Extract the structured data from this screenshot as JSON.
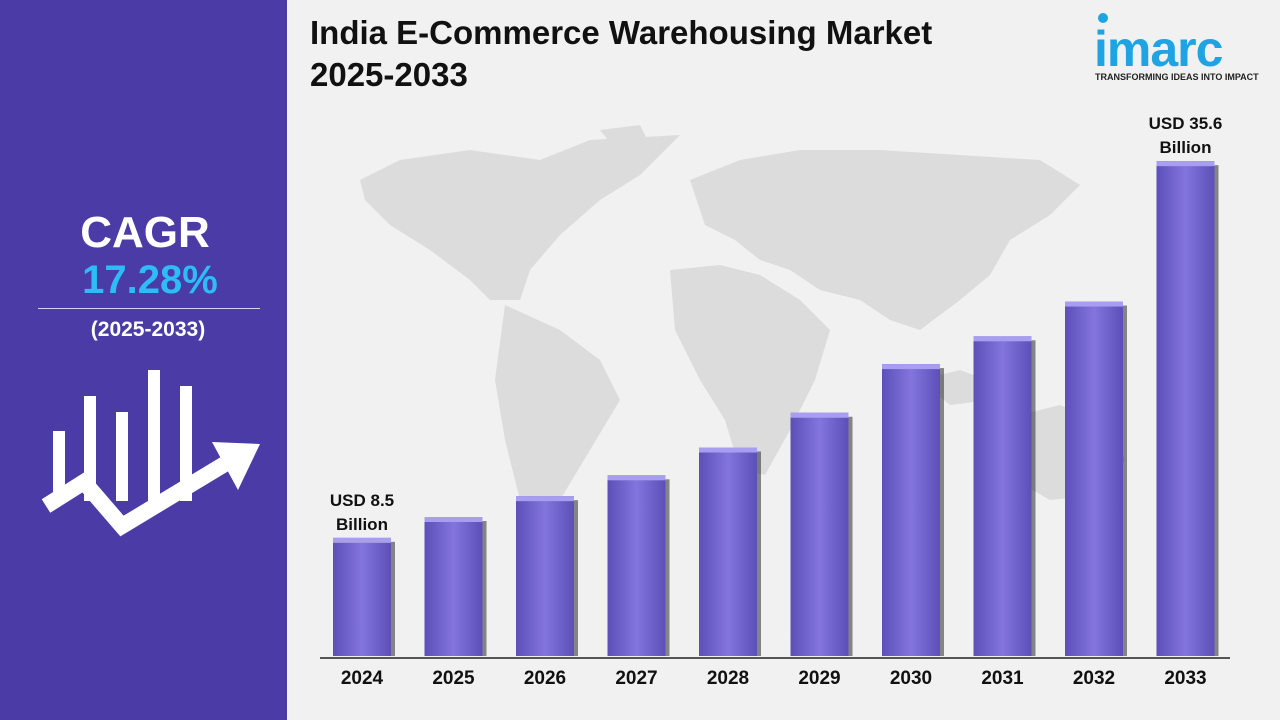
{
  "sidebar": {
    "cagr_label": "CAGR",
    "cagr_value": "17.28%",
    "cagr_period": "(2025-2033)"
  },
  "title": {
    "line1": "India E-Commerce Warehousing Market",
    "line2": "2025-2033"
  },
  "logo": {
    "wordmark": "imarc",
    "tagline": "TRANSFORMING IDEAS INTO IMPACT"
  },
  "colors": {
    "sidebar_bg": "#4b3ba7",
    "accent_blue": "#2dbcf5",
    "bar_fill": "#7b6fd9",
    "map_gray": "#dadada"
  },
  "chart_data": {
    "type": "bar",
    "categories": [
      "2024",
      "2025",
      "2026",
      "2027",
      "2028",
      "2029",
      "2030",
      "2031",
      "2032",
      "2033"
    ],
    "values": [
      8.5,
      10.0,
      11.5,
      13.0,
      15.0,
      17.5,
      21.0,
      23.0,
      25.5,
      35.6
    ],
    "title": "India E-Commerce Warehousing Market 2025-2033",
    "unit": "USD Billion",
    "ylim": [
      0,
      40
    ],
    "grid": false,
    "data_labels": [
      {
        "index": 0,
        "line1": "USD 8.5",
        "line2": "Billion"
      },
      {
        "index": 9,
        "line1": "USD 35.6",
        "line2": "Billion"
      }
    ]
  }
}
